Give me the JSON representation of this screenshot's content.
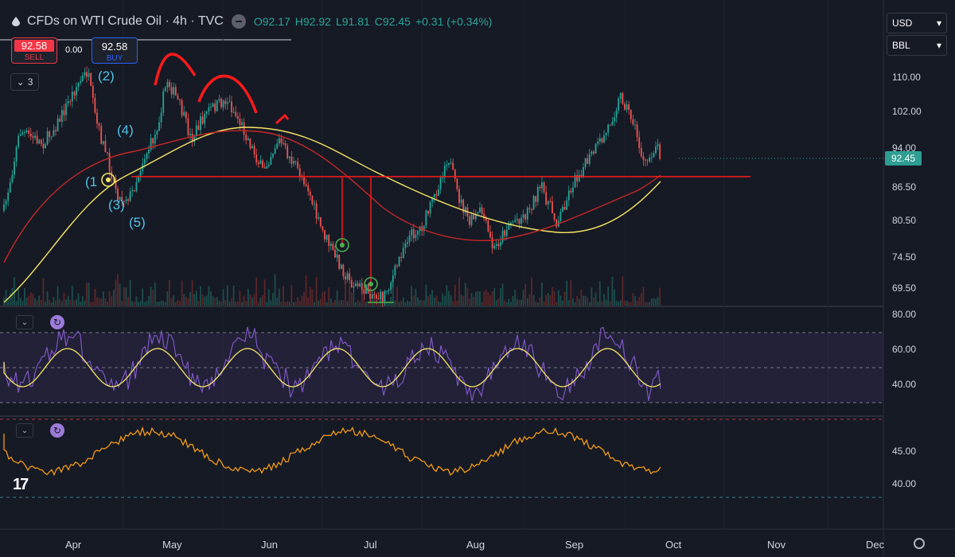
{
  "header": {
    "title": "CFDs on WTI Crude Oil · 4h · TVC",
    "open": "O92.17",
    "high": "H92.92",
    "low": "L91.81",
    "close": "C92.45",
    "change": "+0.31 (+0.34%)"
  },
  "trade": {
    "sell_price": "92.58",
    "sell_label": "SELL",
    "spread": "0.00",
    "buy_price": "92.58",
    "buy_label": "BUY"
  },
  "collapse_count": "3",
  "selectors": {
    "currency": "USD",
    "unit": "BBL"
  },
  "price_axis": [
    "110.00",
    "102.00",
    "94.00",
    "86.50",
    "80.50",
    "74.50",
    "69.50"
  ],
  "last_price": "92.45",
  "rsi_axis": [
    "80.00",
    "60.00",
    "40.00"
  ],
  "osc_axis": [
    "45.00",
    "40.00"
  ],
  "time_axis": [
    "Apr",
    "May",
    "Jun",
    "Jul",
    "Aug",
    "Sep",
    "Oct",
    "Nov",
    "Dec"
  ],
  "waves": [
    "(2)",
    "(4)",
    "(1",
    "(3)",
    "(5)"
  ],
  "logo": "17",
  "colors": {
    "background": "#161a25",
    "up": "#26a69a",
    "down": "#ef5350",
    "ma_yellow": "#f5e663",
    "ma_red": "#c62828",
    "rsi": "#7e57c2",
    "osc": "#f29a13",
    "annotation": "#ff1a1a"
  }
}
